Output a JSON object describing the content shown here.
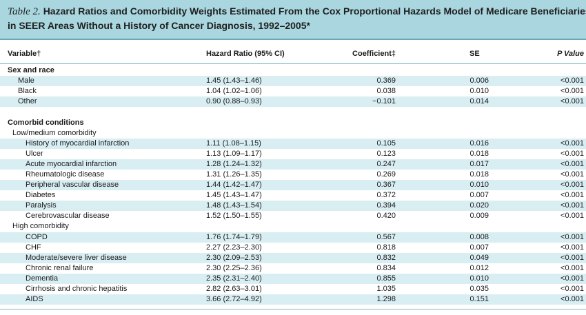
{
  "title": {
    "label": "Table 2.",
    "line1": "Hazard Ratios and Comorbidity Weights Estimated From the Cox Proportional Hazards Model of Medicare Beneficiaries",
    "line2": "in SEER Areas Without a History of Cancer Diagnosis, 1992–2005*"
  },
  "headers": {
    "variable": "Variable†",
    "hr": "Hazard Ratio (95% CI)",
    "coef": "Coefficient‡",
    "se": "SE",
    "p": "P Value"
  },
  "sections": {
    "sex_race": "Sex and race",
    "comorbid": "Comorbid conditions",
    "low_medium": "Low/medium comorbidity",
    "high": "High comorbidity"
  },
  "rows_sex": [
    {
      "variable": "Male",
      "hr": "1.45 (1.43–1.46)",
      "coef": "0.369",
      "se": "0.006",
      "p": "<0.001"
    },
    {
      "variable": "Black",
      "hr": "1.04 (1.02–1.06)",
      "coef": "0.038",
      "se": "0.010",
      "p": "<0.001"
    },
    {
      "variable": "Other",
      "hr": "0.90 (0.88–0.93)",
      "coef": "−0.101",
      "se": "0.014",
      "p": "<0.001"
    }
  ],
  "rows_low": [
    {
      "variable": "History of myocardial infarction",
      "hr": "1.11 (1.08–1.15)",
      "coef": "0.105",
      "se": "0.016",
      "p": "<0.001"
    },
    {
      "variable": "Ulcer",
      "hr": "1.13 (1.09–1.17)",
      "coef": "0.123",
      "se": "0.018",
      "p": "<0.001"
    },
    {
      "variable": "Acute myocardial infarction",
      "hr": "1.28 (1.24–1.32)",
      "coef": "0.247",
      "se": "0.017",
      "p": "<0.001"
    },
    {
      "variable": "Rheumatologic disease",
      "hr": "1.31 (1.26–1.35)",
      "coef": "0.269",
      "se": "0.018",
      "p": "<0.001"
    },
    {
      "variable": "Peripheral vascular disease",
      "hr": "1.44 (1.42–1.47)",
      "coef": "0.367",
      "se": "0.010",
      "p": "<0.001"
    },
    {
      "variable": "Diabetes",
      "hr": "1.45 (1.43–1.47)",
      "coef": "0.372",
      "se": "0.007",
      "p": "<0.001"
    },
    {
      "variable": "Paralysis",
      "hr": "1.48 (1.43–1.54)",
      "coef": "0.394",
      "se": "0.020",
      "p": "<0.001"
    },
    {
      "variable": "Cerebrovascular disease",
      "hr": "1.52 (1.50–1.55)",
      "coef": "0.420",
      "se": "0.009",
      "p": "<0.001"
    }
  ],
  "rows_high": [
    {
      "variable": "COPD",
      "hr": "1.76 (1.74–1.79)",
      "coef": "0.567",
      "se": "0.008",
      "p": "<0.001"
    },
    {
      "variable": "CHF",
      "hr": "2.27 (2.23–2.30)",
      "coef": "0.818",
      "se": "0.007",
      "p": "<0.001"
    },
    {
      "variable": "Moderate/severe liver disease",
      "hr": "2.30 (2.09–2.53)",
      "coef": "0.832",
      "se": "0.049",
      "p": "<0.001"
    },
    {
      "variable": "Chronic renal failure",
      "hr": "2.30 (2.25–2.36)",
      "coef": "0.834",
      "se": "0.012",
      "p": "<0.001"
    },
    {
      "variable": "Dementia",
      "hr": "2.35 (2.31–2.40)",
      "coef": "0.855",
      "se": "0.010",
      "p": "<0.001"
    },
    {
      "variable": "Cirrhosis and chronic hepatitis",
      "hr": "2.82 (2.63–3.01)",
      "coef": "1.035",
      "se": "0.035",
      "p": "<0.001"
    },
    {
      "variable": "AIDS",
      "hr": "3.66 (2.72–4.92)",
      "coef": "1.298",
      "se": "0.151",
      "p": "<0.001"
    }
  ]
}
